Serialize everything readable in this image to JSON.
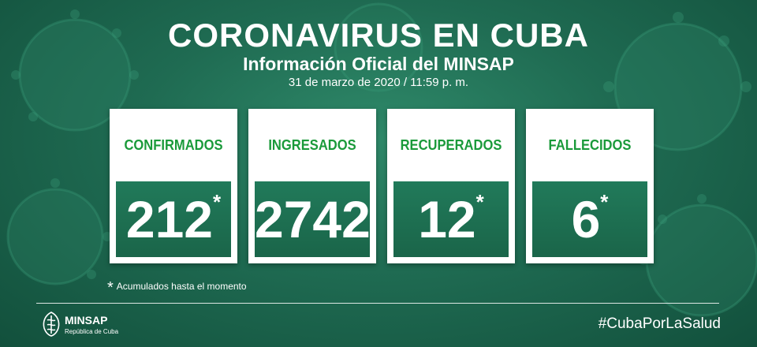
{
  "header": {
    "title": "CORONAVIRUS EN CUBA",
    "subtitle": "Información Oficial del MINSAP",
    "date": "31 de marzo de 2020 / 11:59 p. m."
  },
  "cards": [
    {
      "label": "CONFIRMADOS",
      "value": "212",
      "star": "*"
    },
    {
      "label": "INGRESADOS",
      "value": "2742",
      "star": ""
    },
    {
      "label": "RECUPERADOS",
      "value": "12",
      "star": "*"
    },
    {
      "label": "FALLECIDOS",
      "value": "6",
      "star": "*"
    }
  ],
  "footnote": {
    "star": "*",
    "text": "Acumulados hasta el momento"
  },
  "footer": {
    "logo_name": "MINSAP",
    "logo_sub": "República de Cuba",
    "hashtag": "#CubaPorLaSalud"
  },
  "colors": {
    "background": "#1f6b52",
    "card_label": "#1a9a3a",
    "number_box": "#1e6e52"
  }
}
